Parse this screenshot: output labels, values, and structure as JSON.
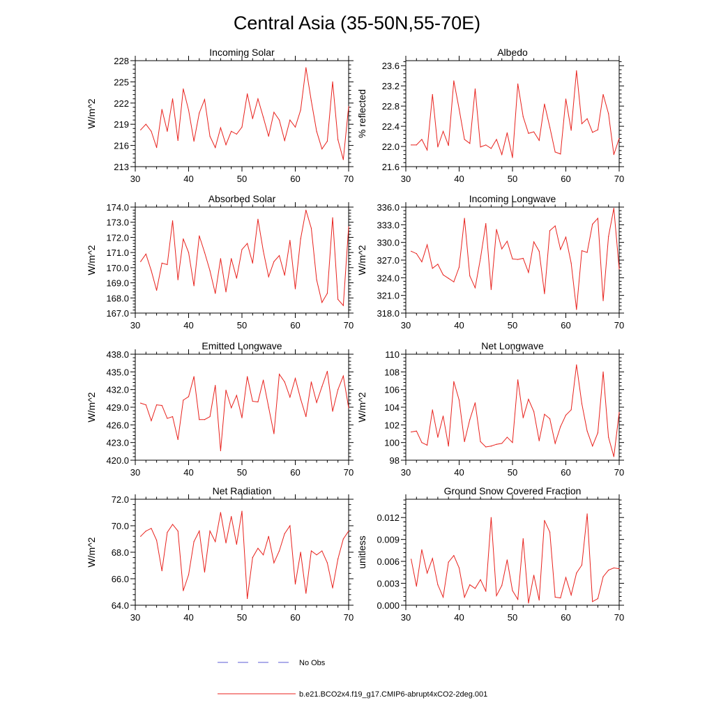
{
  "figure_title": "Central Asia (35-50N,55-70E)",
  "colors": {
    "series": "#e8211c",
    "no_obs": "#5b5bd6",
    "axis": "#000000"
  },
  "legend": [
    {
      "label": "No Obs",
      "style": "dashed"
    },
    {
      "label": "b.e21.BCO2x4.f19_g17.CMIP6-abrupt4xCO2-2deg.001",
      "style": "solid"
    }
  ],
  "chart_data": [
    {
      "type": "line",
      "title": "Incoming Solar",
      "ylabel": "W/m^2",
      "xlabel": "",
      "xlim": [
        30,
        70
      ],
      "ylim": [
        213,
        228
      ],
      "xticks": [
        30,
        40,
        50,
        60,
        70
      ],
      "yticks": [
        "213",
        "216",
        "219",
        "222",
        "225",
        "228"
      ],
      "x": [
        31,
        32,
        33,
        34,
        35,
        36,
        37,
        38,
        39,
        40,
        41,
        42,
        43,
        44,
        45,
        46,
        47,
        48,
        49,
        50,
        51,
        52,
        53,
        54,
        55,
        56,
        57,
        58,
        59,
        60,
        61,
        62,
        63,
        64,
        65,
        66,
        67,
        68,
        69,
        70
      ],
      "values": [
        218.2,
        219.0,
        218.0,
        215.7,
        221.1,
        218.0,
        222.6,
        216.7,
        224.0,
        221.0,
        216.6,
        220.6,
        222.5,
        217.3,
        215.7,
        218.5,
        216.1,
        218.0,
        217.6,
        218.6,
        223.3,
        219.8,
        222.6,
        220.0,
        217.3,
        220.7,
        219.6,
        216.7,
        219.6,
        218.6,
        221.0,
        227.0,
        222.3,
        218.0,
        215.5,
        216.6,
        225.0,
        216.8,
        214.0,
        221.5
      ]
    },
    {
      "type": "line",
      "title": "Albedo",
      "ylabel": "% reflected",
      "xlabel": "",
      "xlim": [
        30,
        70
      ],
      "ylim": [
        21.6,
        23.7
      ],
      "xticks": [
        30,
        40,
        50,
        60,
        70
      ],
      "yticks": [
        "21.6",
        "22.0",
        "22.4",
        "22.8",
        "23.2",
        "23.6"
      ],
      "x": [
        31,
        32,
        33,
        34,
        35,
        36,
        37,
        38,
        39,
        40,
        41,
        42,
        43,
        44,
        45,
        46,
        47,
        48,
        49,
        50,
        51,
        52,
        53,
        54,
        55,
        56,
        57,
        58,
        59,
        60,
        61,
        62,
        63,
        64,
        65,
        66,
        67,
        68,
        69,
        70
      ],
      "values": [
        22.03,
        22.03,
        22.14,
        21.93,
        23.03,
        21.99,
        22.3,
        22.02,
        23.3,
        22.74,
        22.14,
        22.06,
        23.14,
        21.99,
        22.03,
        21.96,
        22.14,
        21.84,
        22.27,
        21.78,
        23.24,
        22.59,
        22.26,
        22.29,
        22.12,
        22.84,
        22.38,
        21.89,
        21.85,
        22.94,
        22.32,
        23.5,
        22.45,
        22.55,
        22.28,
        22.33,
        23.03,
        22.65,
        21.84,
        22.16
      ]
    },
    {
      "type": "line",
      "title": "Absorbed Solar",
      "ylabel": "W/m^2",
      "xlabel": "",
      "xlim": [
        30,
        70
      ],
      "ylim": [
        167.0,
        174.0
      ],
      "xticks": [
        30,
        40,
        50,
        60,
        70
      ],
      "yticks": [
        "167.0",
        "168.0",
        "169.0",
        "170.0",
        "171.0",
        "172.0",
        "173.0",
        "174.0"
      ],
      "x": [
        31,
        32,
        33,
        34,
        35,
        36,
        37,
        38,
        39,
        40,
        41,
        42,
        43,
        44,
        45,
        46,
        47,
        48,
        49,
        50,
        51,
        52,
        53,
        54,
        55,
        56,
        57,
        58,
        59,
        60,
        61,
        62,
        63,
        64,
        65,
        66,
        67,
        68,
        69,
        70
      ],
      "values": [
        170.4,
        170.9,
        169.8,
        168.5,
        170.3,
        170.2,
        173.1,
        169.2,
        171.9,
        171.0,
        168.8,
        172.1,
        171.0,
        169.8,
        168.3,
        170.6,
        168.4,
        170.6,
        169.3,
        171.2,
        171.6,
        170.3,
        173.2,
        171.1,
        169.4,
        170.4,
        170.8,
        169.5,
        171.8,
        168.6,
        171.9,
        173.8,
        172.6,
        169.2,
        167.7,
        168.3,
        173.3,
        167.9,
        167.5,
        172.7
      ]
    },
    {
      "type": "line",
      "title": "Incoming Longwave",
      "ylabel": "W/m^2",
      "xlabel": "",
      "xlim": [
        30,
        70
      ],
      "ylim": [
        318.0,
        336.0
      ],
      "xticks": [
        30,
        40,
        50,
        60,
        70
      ],
      "yticks": [
        "318.0",
        "321.0",
        "324.0",
        "327.0",
        "330.0",
        "333.0",
        "336.0"
      ],
      "x": [
        31,
        32,
        33,
        34,
        35,
        36,
        37,
        38,
        39,
        40,
        41,
        42,
        43,
        44,
        45,
        46,
        47,
        48,
        49,
        50,
        51,
        52,
        53,
        54,
        55,
        56,
        57,
        58,
        59,
        60,
        61,
        62,
        63,
        64,
        65,
        66,
        67,
        68,
        69,
        70
      ],
      "values": [
        328.5,
        328.1,
        326.7,
        329.6,
        325.6,
        326.3,
        324.5,
        323.9,
        323.3,
        325.8,
        334.1,
        324.3,
        322.3,
        327.3,
        333.2,
        322.0,
        332.2,
        328.9,
        330.2,
        327.2,
        327.1,
        327.3,
        324.9,
        330.1,
        328.5,
        321.3,
        332.0,
        332.8,
        328.8,
        330.9,
        326.5,
        318.6,
        328.6,
        328.3,
        333.1,
        334.1,
        320.1,
        331.0,
        335.8,
        325.5
      ]
    },
    {
      "type": "line",
      "title": "Emitted Longwave",
      "ylabel": "W/m^2",
      "xlabel": "",
      "xlim": [
        30,
        70
      ],
      "ylim": [
        420.0,
        438.0
      ],
      "xticks": [
        30,
        40,
        50,
        60,
        70
      ],
      "yticks": [
        "420.0",
        "423.0",
        "426.0",
        "429.0",
        "432.0",
        "435.0",
        "438.0"
      ],
      "x": [
        31,
        32,
        33,
        34,
        35,
        36,
        37,
        38,
        39,
        40,
        41,
        42,
        43,
        44,
        45,
        46,
        47,
        48,
        49,
        50,
        51,
        52,
        53,
        54,
        55,
        56,
        57,
        58,
        59,
        60,
        61,
        62,
        63,
        64,
        65,
        66,
        67,
        68,
        69,
        70
      ],
      "values": [
        429.7,
        429.4,
        426.7,
        429.4,
        429.3,
        427.1,
        427.4,
        423.5,
        430.2,
        430.8,
        434.2,
        426.9,
        426.9,
        427.4,
        432.7,
        421.6,
        431.9,
        428.9,
        431.0,
        427.2,
        434.2,
        430.0,
        429.9,
        433.6,
        429.0,
        424.5,
        434.6,
        433.3,
        430.7,
        433.9,
        430.4,
        427.4,
        433.3,
        429.8,
        432.5,
        435.1,
        428.3,
        432.0,
        434.3,
        428.9
      ]
    },
    {
      "type": "line",
      "title": "Net Longwave",
      "ylabel": "W/m^2",
      "xlabel": "",
      "xlim": [
        30,
        70
      ],
      "ylim": [
        98,
        110
      ],
      "xticks": [
        30,
        40,
        50,
        60,
        70
      ],
      "yticks": [
        "98",
        "100",
        "102",
        "104",
        "106",
        "108",
        "110"
      ],
      "x": [
        31,
        32,
        33,
        34,
        35,
        36,
        37,
        38,
        39,
        40,
        41,
        42,
        43,
        44,
        45,
        46,
        47,
        48,
        49,
        50,
        51,
        52,
        53,
        54,
        55,
        56,
        57,
        58,
        59,
        60,
        61,
        62,
        63,
        64,
        65,
        66,
        67,
        68,
        69,
        70
      ],
      "values": [
        101.2,
        101.3,
        100.0,
        99.7,
        103.7,
        100.6,
        103.0,
        99.6,
        106.9,
        104.8,
        100.1,
        102.6,
        104.5,
        100.1,
        99.5,
        99.6,
        99.8,
        99.9,
        100.6,
        100.0,
        107.1,
        102.8,
        104.9,
        103.5,
        100.2,
        103.2,
        102.7,
        99.9,
        101.8,
        103.1,
        103.7,
        108.8,
        104.4,
        101.3,
        99.6,
        101.1,
        108.0,
        100.6,
        98.4,
        103.4
      ]
    },
    {
      "type": "line",
      "title": "Net Radiation",
      "ylabel": "W/m^2",
      "xlabel": "",
      "xlim": [
        30,
        70
      ],
      "ylim": [
        64.0,
        72.0
      ],
      "xticks": [
        30,
        40,
        50,
        60,
        70
      ],
      "yticks": [
        "64.0",
        "66.0",
        "68.0",
        "70.0",
        "72.0"
      ],
      "x": [
        31,
        32,
        33,
        34,
        35,
        36,
        37,
        38,
        39,
        40,
        41,
        42,
        43,
        44,
        45,
        46,
        47,
        48,
        49,
        50,
        51,
        52,
        53,
        54,
        55,
        56,
        57,
        58,
        59,
        60,
        61,
        62,
        63,
        64,
        65,
        66,
        67,
        68,
        69,
        70
      ],
      "values": [
        69.2,
        69.6,
        69.8,
        68.9,
        66.6,
        69.5,
        70.1,
        69.6,
        65.1,
        66.3,
        68.8,
        69.6,
        66.5,
        69.6,
        68.8,
        71.0,
        68.7,
        70.7,
        68.6,
        71.1,
        64.5,
        67.6,
        68.3,
        67.8,
        69.2,
        67.2,
        68.1,
        69.4,
        70.0,
        65.6,
        68.0,
        64.9,
        68.1,
        67.8,
        68.1,
        67.2,
        65.3,
        67.5,
        69.0,
        69.6
      ]
    },
    {
      "type": "line",
      "title": "Ground Snow Covered Fraction",
      "ylabel": "unitless",
      "xlabel": "",
      "xlim": [
        30,
        70
      ],
      "ylim": [
        0.0,
        0.0145
      ],
      "xticks": [
        30,
        40,
        50,
        60,
        70
      ],
      "yticks": [
        "0.000",
        "0.003",
        "0.006",
        "0.009",
        "0.012"
      ],
      "x": [
        31,
        32,
        33,
        34,
        35,
        36,
        37,
        38,
        39,
        40,
        41,
        42,
        43,
        44,
        45,
        46,
        47,
        48,
        49,
        50,
        51,
        52,
        53,
        54,
        55,
        56,
        57,
        58,
        59,
        60,
        61,
        62,
        63,
        64,
        65,
        66,
        67,
        68,
        69,
        70
      ],
      "values": [
        0.0063,
        0.0026,
        0.0076,
        0.0044,
        0.0064,
        0.0028,
        0.0011,
        0.0059,
        0.0068,
        0.0051,
        0.0011,
        0.0028,
        0.0023,
        0.0035,
        0.0019,
        0.012,
        0.0013,
        0.0027,
        0.0062,
        0.002,
        0.0008,
        0.0091,
        0.0003,
        0.0041,
        0.0007,
        0.0116,
        0.01,
        0.0011,
        0.001,
        0.0038,
        0.0014,
        0.0044,
        0.0055,
        0.0125,
        0.0005,
        0.0009,
        0.0039,
        0.0048,
        0.0051,
        0.005
      ]
    }
  ]
}
